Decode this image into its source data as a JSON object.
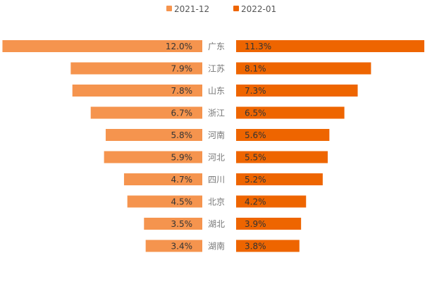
{
  "chart_data": {
    "type": "bar",
    "title": "",
    "categories": [
      "广东",
      "江苏",
      "山东",
      "浙江",
      "河南",
      "河北",
      "四川",
      "北京",
      "湖北",
      "湖南"
    ],
    "series": [
      {
        "name": "2021-12",
        "color": "#F5944E",
        "values": [
          12.0,
          7.9,
          7.8,
          6.7,
          5.8,
          5.9,
          4.7,
          4.5,
          3.5,
          3.4
        ],
        "labels": [
          "12.0%",
          "7.9%",
          "7.8%",
          "6.7%",
          "5.8%",
          "5.9%",
          "4.7%",
          "4.5%",
          "3.5%",
          "3.4%"
        ]
      },
      {
        "name": "2022-01",
        "color": "#EE6500",
        "values": [
          11.3,
          8.1,
          7.3,
          6.5,
          5.6,
          5.5,
          5.2,
          4.2,
          3.9,
          3.8
        ],
        "labels": [
          "11.3%",
          "8.1%",
          "7.3%",
          "6.5%",
          "5.6%",
          "5.5%",
          "5.2%",
          "4.2%",
          "3.9%",
          "3.8%"
        ]
      }
    ],
    "legend": "top-center",
    "grid": false
  }
}
